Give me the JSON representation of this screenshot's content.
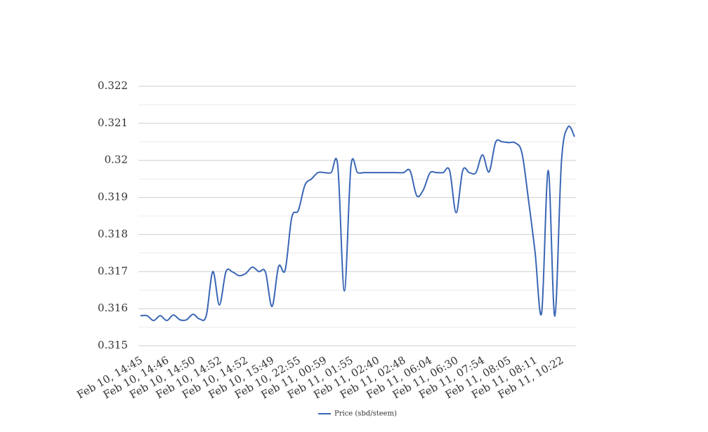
{
  "chart_data": {
    "type": "line",
    "categories": [
      "Feb 10, 14:45",
      null,
      null,
      null,
      "Feb 10, 14:46",
      null,
      null,
      null,
      "Feb 10, 14:50",
      null,
      null,
      null,
      "Feb 10, 14:52",
      null,
      null,
      null,
      "Feb 10, 14:52",
      null,
      null,
      null,
      "Feb 10, 15:49",
      null,
      null,
      null,
      "Feb 10, 22:55",
      null,
      null,
      null,
      "Feb 11, 00:59",
      null,
      null,
      null,
      "Feb 11, 01:55",
      null,
      null,
      null,
      "Feb 11, 02:40",
      null,
      null,
      null,
      "Feb 11, 02:48",
      null,
      null,
      null,
      "Feb 11, 06:04",
      null,
      null,
      null,
      "Feb 11, 06:30",
      null,
      null,
      null,
      "Feb 11, 07:54",
      null,
      null,
      null,
      "Feb 11, 08:05",
      null,
      null,
      null,
      "Feb 11, 08:11",
      null,
      null,
      null,
      "Feb 11, 10:22",
      null,
      null
    ],
    "series": [
      {
        "name": "Price (sbd/steem)",
        "color": "#3a66b5",
        "values": [
          0.31581,
          0.31581,
          0.31568,
          0.31581,
          0.31568,
          0.31583,
          0.3157,
          0.3157,
          0.31585,
          0.31572,
          0.31581,
          0.317,
          0.3161,
          0.317,
          0.31699,
          0.31689,
          0.31695,
          0.31712,
          0.317,
          0.31699,
          0.31606,
          0.31714,
          0.31704,
          0.31846,
          0.31865,
          0.31933,
          0.3195,
          0.31967,
          0.31967,
          0.31967,
          0.31985,
          0.31648,
          0.31984,
          0.31967,
          0.31967,
          0.31967,
          0.31967,
          0.31967,
          0.31967,
          0.31967,
          0.31967,
          0.31972,
          0.31905,
          0.3192,
          0.31966,
          0.31967,
          0.31967,
          0.31973,
          0.31859,
          0.31973,
          0.31967,
          0.31967,
          0.32015,
          0.31969,
          0.32049,
          0.3205,
          0.32048,
          0.32047,
          0.3202,
          0.31893,
          0.31752,
          0.31589,
          0.31973,
          0.3158,
          0.31994,
          0.3209,
          0.32064
        ]
      }
    ],
    "ylim": [
      0.315,
      0.322
    ],
    "yticks": [
      0.315,
      0.316,
      0.317,
      0.318,
      0.319,
      0.32,
      0.321,
      0.322
    ],
    "yminor_ticks": [
      0.3155,
      0.3165,
      0.3175,
      0.3185,
      0.3195,
      0.3205,
      0.3215
    ],
    "grid": true,
    "legend": "bottom"
  }
}
